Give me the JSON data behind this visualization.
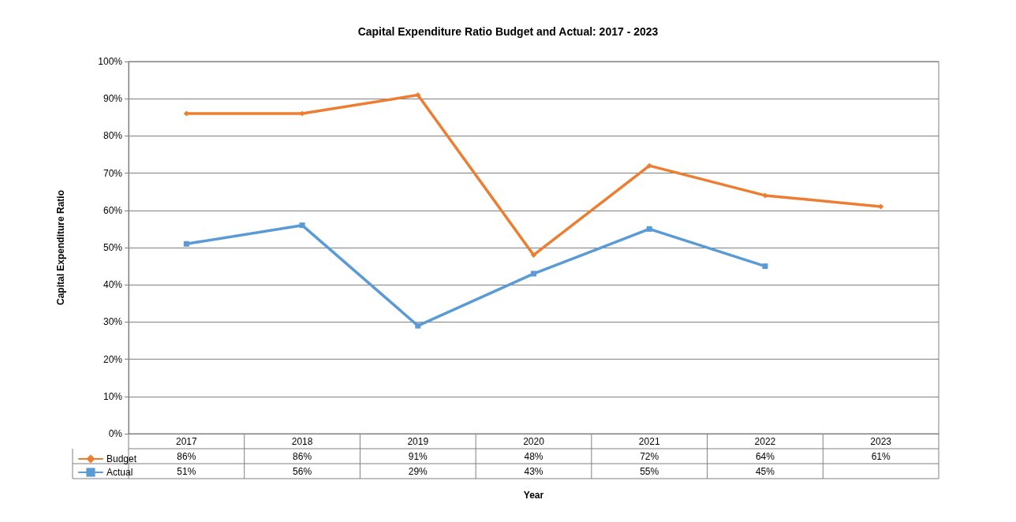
{
  "chart_data": {
    "type": "line",
    "title": "Capital Expenditure Ratio Budget and Actual: 2017 - 2023",
    "xlabel": "Year",
    "ylabel": "Capital Expenditure Ratio",
    "categories": [
      "2017",
      "2018",
      "2019",
      "2020",
      "2021",
      "2022",
      "2023"
    ],
    "series": [
      {
        "name": "Budget",
        "color": "#ed7d31",
        "marker": "diamond",
        "values": [
          86,
          86,
          91,
          48,
          72,
          64,
          61
        ],
        "value_labels": [
          "86%",
          "86%",
          "91%",
          "48%",
          "72%",
          "64%",
          "61%"
        ]
      },
      {
        "name": "Actual",
        "color": "#5b9bd5",
        "marker": "square",
        "values": [
          51,
          56,
          29,
          43,
          55,
          45,
          null
        ],
        "value_labels": [
          "51%",
          "56%",
          "29%",
          "43%",
          "55%",
          "45%",
          null
        ]
      }
    ],
    "ylim": [
      0,
      100
    ],
    "yticks": [
      {
        "value": 0,
        "label": "0%"
      },
      {
        "value": 10,
        "label": "10%"
      },
      {
        "value": 20,
        "label": "20%"
      },
      {
        "value": 30,
        "label": "30%"
      },
      {
        "value": 40,
        "label": "40%"
      },
      {
        "value": 50,
        "label": "50%"
      },
      {
        "value": 60,
        "label": "60%"
      },
      {
        "value": 70,
        "label": "70%"
      },
      {
        "value": 80,
        "label": "80%"
      },
      {
        "value": 90,
        "label": "90%"
      },
      {
        "value": 100,
        "label": "100%"
      }
    ],
    "grid": "y",
    "legend": "bottom left",
    "line_style": "solid"
  }
}
